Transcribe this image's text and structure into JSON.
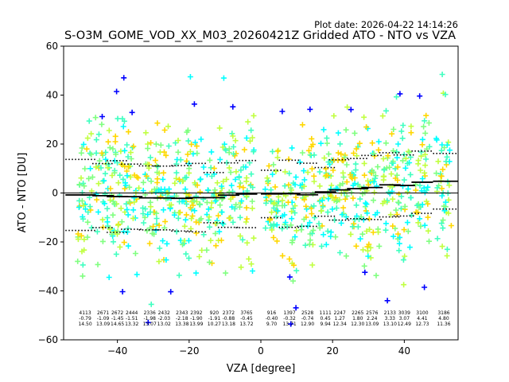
{
  "plot_date": "Plot date: 2026-04-22 14:14:26",
  "chart_data": {
    "type": "scatter",
    "title": "S-O3M_GOME_VOD_XX_M03_20260421Z Gridded ATO - NTO vs VZA",
    "xlabel": "VZA [degree]",
    "ylabel": "ATO - NTO [DU]",
    "xlim": [
      -55,
      55
    ],
    "ylim": [
      -60,
      60
    ],
    "xticks": [
      -40,
      -20,
      0,
      20,
      40
    ],
    "yticks": [
      -60,
      -40,
      -20,
      0,
      20,
      40,
      60
    ],
    "zero_line": 0,
    "marker": "plus",
    "point_colors": [
      "#00ffff",
      "#40ffc0",
      "#80ff80",
      "#c0ff40",
      "#ffd700",
      "#ffa500",
      "#0000ff"
    ],
    "bins": [
      {
        "vza": -49,
        "count": "4113",
        "mean": "-0.79",
        "std": "14.50",
        "mean_line": -0.79,
        "upper": 13.71,
        "lower": -15.29
      },
      {
        "vza": -44,
        "count": "2671",
        "mean": "-1.09",
        "std": "13.09",
        "mean_line": -1.09,
        "upper": 12.0,
        "lower": -14.18
      },
      {
        "vza": -40,
        "count": "2672",
        "mean": "-1.45",
        "std": "14.65",
        "mean_line": -1.45,
        "upper": 13.2,
        "lower": -16.1
      },
      {
        "vza": -36,
        "count": "2444",
        "mean": "-1.51",
        "std": "13.32",
        "mean_line": -1.51,
        "upper": 11.81,
        "lower": -14.83
      },
      {
        "vza": -31,
        "count": "2336",
        "mean": "-1.98",
        "std": "13.07",
        "mean_line": -1.98,
        "upper": 11.09,
        "lower": -15.05
      },
      {
        "vza": -27,
        "count": "2432",
        "mean": "-2.03",
        "std": "13.02",
        "mean_line": -2.03,
        "upper": 10.99,
        "lower": -15.05
      },
      {
        "vza": -22,
        "count": "2343",
        "mean": "-2.18",
        "std": "13.38",
        "mean_line": -2.18,
        "upper": 11.2,
        "lower": -15.56
      },
      {
        "vza": -18,
        "count": "2392",
        "mean": "-1.90",
        "std": "13.99",
        "mean_line": -1.9,
        "upper": 12.09,
        "lower": -15.89
      },
      {
        "vza": -13,
        "count": "920",
        "mean": "-1.91",
        "std": "10.27",
        "mean_line": -1.91,
        "upper": 8.36,
        "lower": -12.18
      },
      {
        "vza": -9,
        "count": "2372",
        "mean": "-0.88",
        "std": "13.18",
        "mean_line": -0.88,
        "upper": 12.3,
        "lower": -14.06
      },
      {
        "vza": -4,
        "count": "3765",
        "mean": "-0.45",
        "std": "13.72",
        "mean_line": -0.45,
        "upper": 13.27,
        "lower": -14.17
      },
      {
        "vza": 3,
        "count": "916",
        "mean": "-0.40",
        "std": "9.70",
        "mean_line": -0.4,
        "upper": 9.3,
        "lower": -10.1
      },
      {
        "vza": 8,
        "count": "1397",
        "mean": "-0.32",
        "std": "13.71",
        "mean_line": -0.32,
        "upper": 13.39,
        "lower": -14.03
      },
      {
        "vza": 13,
        "count": "2528",
        "mean": "-0.74",
        "std": "12.90",
        "mean_line": -0.74,
        "upper": 12.16,
        "lower": -13.64
      },
      {
        "vza": 18,
        "count": "1111",
        "mean": "0.45",
        "std": "9.94",
        "mean_line": 0.45,
        "upper": 10.39,
        "lower": -9.49
      },
      {
        "vza": 22,
        "count": "2247",
        "mean": "1.27",
        "std": "12.34",
        "mean_line": 1.27,
        "upper": 13.61,
        "lower": -11.07
      },
      {
        "vza": 27,
        "count": "2265",
        "mean": "1.80",
        "std": "12.30",
        "mean_line": 1.8,
        "upper": 14.1,
        "lower": -10.5
      },
      {
        "vza": 31,
        "count": "2576",
        "mean": "2.24",
        "std": "13.09",
        "mean_line": 2.24,
        "upper": 15.33,
        "lower": -10.85
      },
      {
        "vza": 36,
        "count": "2133",
        "mean": "3.33",
        "std": "13.10",
        "mean_line": 3.33,
        "upper": 16.43,
        "lower": -9.77
      },
      {
        "vza": 40,
        "count": "3039",
        "mean": "3.07",
        "std": "12.49",
        "mean_line": 3.07,
        "upper": 15.56,
        "lower": -9.42
      },
      {
        "vza": 45,
        "count": "3100",
        "mean": "4.41",
        "std": "12.73",
        "mean_line": 4.41,
        "upper": 17.14,
        "lower": -8.32
      },
      {
        "vza": 51,
        "count": "3186",
        "mean": "4.80",
        "std": "11.36",
        "mean_line": 4.8,
        "upper": 16.16,
        "lower": -6.56
      }
    ]
  }
}
